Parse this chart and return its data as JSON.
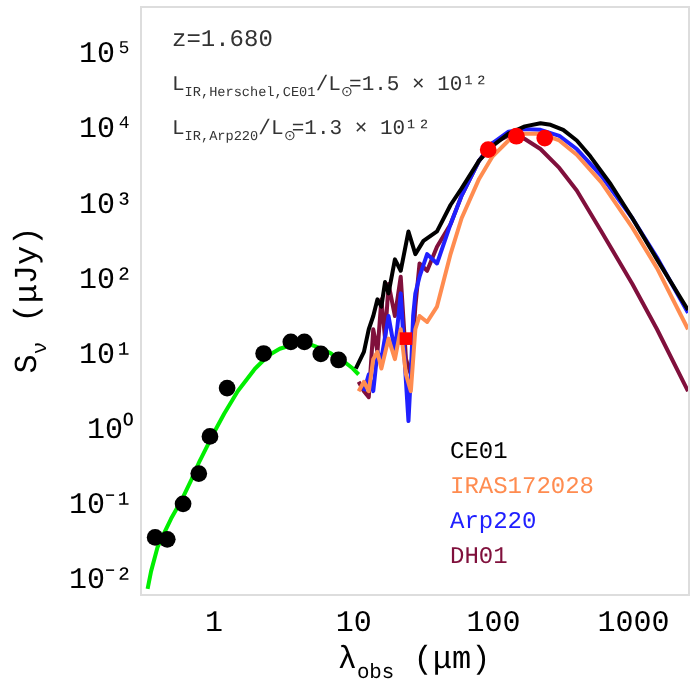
{
  "chart_data": {
    "type": "line",
    "xlabel": "λ$_{obs}$ (μm)",
    "ylabel": "S$_{ν}$ (μJy)",
    "annotations": [
      "z=1.680",
      "L$_{IR,Herschel,CE01}$/L$_{⊙}$=1.5 × 10¹²",
      "L$_{IR,Arp220}$/L$_{⊙}$=1.3 × 10¹²"
    ],
    "log": "xy",
    "grid": false,
    "legend": "right",
    "line_style": "solid",
    "xlim": [
      0.3,
      2500
    ],
    "ylim": [
      0.006,
      400000
    ],
    "xticks": [
      1,
      10,
      100,
      1000
    ],
    "yticks": [
      {
        "value": 0.01,
        "label": "10⁻²"
      },
      {
        "value": 0.1,
        "label": "10⁻¹"
      },
      {
        "value": 1,
        "label": "10⁰"
      },
      {
        "value": 10,
        "label": "10¹"
      },
      {
        "value": 100,
        "label": "10²"
      },
      {
        "value": 1000,
        "label": "10³"
      },
      {
        "value": 10000,
        "label": "10⁴"
      },
      {
        "value": 100000,
        "label": "10⁵"
      }
    ],
    "series": [
      {
        "color": "#00ee00",
        "x": [
          0.34,
          0.36,
          0.4,
          0.45,
          0.5,
          0.6,
          0.7,
          0.8,
          1,
          1.2,
          1.5,
          2,
          2.5,
          3,
          4,
          5,
          6,
          7,
          8,
          9,
          10,
          11
        ],
        "values": [
          0.007,
          0.012,
          0.025,
          0.04,
          0.06,
          0.11,
          0.2,
          0.35,
          0.8,
          1.5,
          3,
          6,
          9,
          11,
          13,
          12.5,
          11,
          9.5,
          8,
          7,
          6,
          5
        ]
      },
      {
        "name": "CE01",
        "color": "#000000",
        "x": [
          10.5,
          12,
          13,
          14,
          15,
          16,
          17,
          18,
          20,
          22,
          25,
          28,
          32,
          40,
          50,
          60,
          80,
          100,
          130,
          170,
          220,
          260,
          320,
          400,
          500,
          700,
          1000,
          1500,
          2500
        ],
        "values": [
          6,
          10,
          20,
          30,
          50,
          40,
          85,
          60,
          170,
          120,
          400,
          200,
          300,
          400,
          900,
          1500,
          3500,
          5500,
          8000,
          10000,
          11000,
          10500,
          9000,
          6500,
          4000,
          1700,
          600,
          170,
          36
        ]
      },
      {
        "name": "IRAS172028",
        "color": "#ff8c50",
        "x": [
          11,
          12,
          13,
          14,
          15,
          16,
          18,
          20,
          22,
          24,
          26,
          28,
          30,
          34,
          40,
          50,
          60,
          80,
          100,
          130,
          170,
          220,
          300,
          400,
          600,
          1000,
          1500,
          2500
        ],
        "values": [
          3,
          4,
          3,
          8,
          10,
          6,
          15,
          8,
          20,
          5,
          3,
          20,
          30,
          25,
          40,
          200,
          600,
          2000,
          4000,
          6500,
          8000,
          8000,
          6500,
          4200,
          1800,
          450,
          130,
          20
        ]
      },
      {
        "name": "Arp220",
        "color": "#2020ff",
        "x": [
          12,
          13,
          14,
          15,
          16,
          18,
          20,
          22,
          24,
          25,
          26,
          27,
          28,
          30,
          34,
          40,
          50,
          60,
          80,
          100,
          130,
          170,
          220,
          300,
          400,
          600,
          1000,
          1500,
          2500
        ],
        "values": [
          3,
          5,
          3,
          10,
          8,
          30,
          10,
          60,
          4,
          1.2,
          5,
          30,
          60,
          100,
          200,
          150,
          500,
          1200,
          3500,
          6000,
          8500,
          9200,
          9000,
          7500,
          5000,
          2200,
          600,
          180,
          33
        ]
      },
      {
        "name": "DH01",
        "color": "#80103c",
        "x": [
          11,
          12,
          13,
          14,
          15,
          16,
          17,
          18,
          20,
          22,
          24,
          26,
          28,
          30,
          34,
          40,
          50,
          60,
          80,
          100,
          130,
          170,
          220,
          300,
          400,
          600,
          1000,
          1500,
          2500
        ],
        "values": [
          4,
          3,
          2.5,
          20,
          10,
          50,
          15,
          80,
          30,
          100,
          8,
          5,
          40,
          150,
          120,
          250,
          500,
          1200,
          3500,
          6000,
          7500,
          6800,
          5000,
          2800,
          1400,
          400,
          80,
          20,
          3
        ]
      },
      {
        "type": "scatter",
        "marker": "circle",
        "color": "#000000",
        "x": [
          0.385,
          0.47,
          0.61,
          0.79,
          0.95,
          1.26,
          2.3,
          3.6,
          4.5,
          5.9,
          7.9
        ],
        "values": [
          0.034,
          0.032,
          0.095,
          0.24,
          0.75,
          3.3,
          9.5,
          13.6,
          13.6,
          9.4,
          7.8
        ]
      },
      {
        "type": "scatter",
        "marker": "circle",
        "color": "#ff0000",
        "x": [
          93,
          148,
          236
        ],
        "values": [
          4900,
          7400,
          7000
        ]
      },
      {
        "type": "scatter",
        "marker": "square",
        "color": "#ff0000",
        "x": [
          24
        ],
        "values": [
          15
        ]
      }
    ]
  }
}
